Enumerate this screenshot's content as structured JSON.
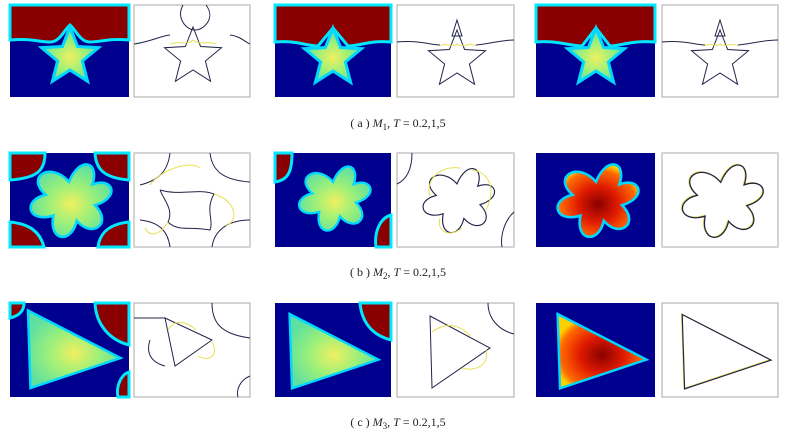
{
  "figure": {
    "captions": [
      {
        "label": "( a )",
        "symbol": "M",
        "subscript": "1",
        "separator": ",",
        "variable": "T",
        "values": "= 0.2,1,5"
      },
      {
        "label": "( b )",
        "symbol": "M",
        "subscript": "2",
        "separator": ",",
        "variable": "T",
        "values": "= 0.2,1,5"
      },
      {
        "label": "( c )",
        "symbol": "M",
        "subscript": "3",
        "separator": ",",
        "variable": "T",
        "values": "= 0.2,1,5"
      }
    ]
  }
}
